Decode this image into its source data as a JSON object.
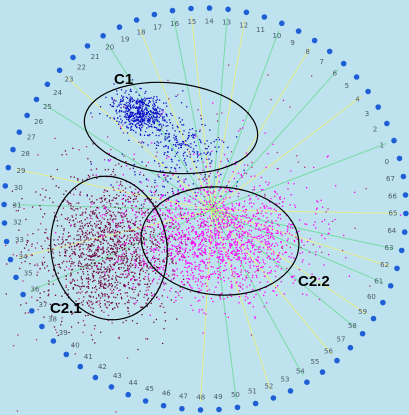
{
  "colors": {
    "background": "#bfe3ee",
    "anchor": "#1f5fd6",
    "anchor_label": "#4a5a6a",
    "cluster_c1": "#1010c8",
    "cluster_c21": "#6e0a3c",
    "cluster_c22": "#ff00ff",
    "cluster_mix": "#b03080",
    "rays_green": "#5fd98a",
    "rays_yellow": "#f2f06a",
    "ellipse": "#000000"
  },
  "anchors": {
    "labels_visible": [
      "15",
      "14",
      "13",
      "12",
      "11",
      "10",
      "9",
      "8",
      "7",
      "6",
      "5",
      "4",
      "3",
      "2",
      "1",
      "0",
      "67",
      "66",
      "65",
      "64",
      "63",
      "62",
      "61",
      "60",
      "59",
      "58",
      "57",
      "56",
      "55",
      "54",
      "53",
      "52",
      "51",
      "50",
      "49",
      "48",
      "47",
      "46",
      "45",
      "44",
      "43",
      "42",
      "41",
      "40",
      "39",
      "38",
      "37",
      "36",
      "35",
      "34",
      "33",
      "32",
      "31",
      "30",
      "29",
      "28",
      "27",
      "26",
      "25",
      "24",
      "23",
      "22",
      "21",
      "20",
      "19",
      "18",
      "17",
      "16"
    ]
  },
  "clusters": [
    {
      "id": "c1",
      "label": "C1"
    },
    {
      "id": "c21",
      "label": "C2.1"
    },
    {
      "id": "c22",
      "label": "C2.2"
    }
  ]
}
